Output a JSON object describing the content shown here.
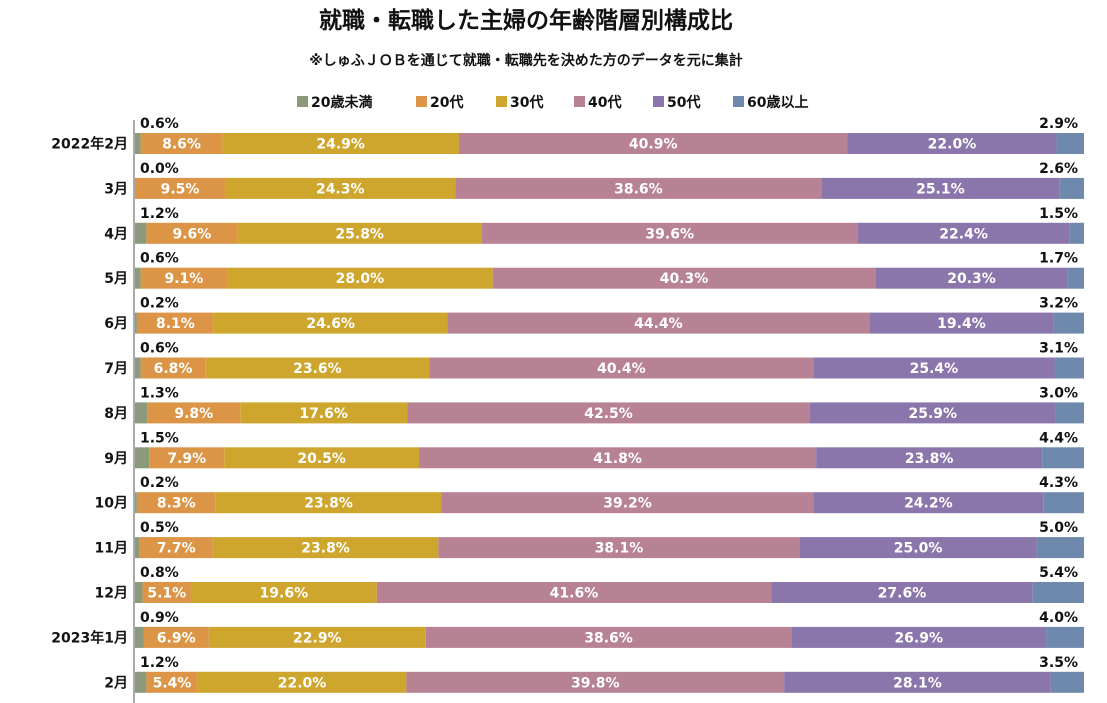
{
  "chart_data": {
    "type": "bar",
    "orientation": "horizontal",
    "stacked": "100%",
    "title": "就職・転職した主婦の年齢階層別構成比",
    "subtitle": "※しゅふＪＯＢを通じて就職・転職先を決めた方のデータを元に集計",
    "legend_position": "top",
    "grid": false,
    "xlim": [
      0,
      100
    ],
    "categories": [
      "2022年2月",
      "3月",
      "4月",
      "5月",
      "6月",
      "7月",
      "8月",
      "9月",
      "10月",
      "11月",
      "12月",
      "2023年1月",
      "2月"
    ],
    "series": [
      {
        "name": "20歳未満",
        "color": "#8a9a7b",
        "values": [
          0.6,
          0.0,
          1.2,
          0.6,
          0.2,
          0.6,
          1.3,
          1.5,
          0.2,
          0.5,
          0.8,
          0.9,
          1.2
        ],
        "labels": [
          "0.6%",
          "0.0%",
          "1.2%",
          "0.6%",
          "0.2%",
          "0.6%",
          "1.3%",
          "1.5%",
          "0.2%",
          "0.5%",
          "0.8%",
          "0.9%",
          "1.2%"
        ]
      },
      {
        "name": "20代",
        "color": "#dc9546",
        "values": [
          8.6,
          9.5,
          9.6,
          9.1,
          8.1,
          6.8,
          9.8,
          7.9,
          8.3,
          7.7,
          5.1,
          6.9,
          5.4
        ],
        "labels": [
          "8.6%",
          "9.5%",
          "9.6%",
          "9.1%",
          "8.1%",
          "6.8%",
          "9.8%",
          "7.9%",
          "8.3%",
          "7.7%",
          "5.1%",
          "6.9%",
          "5.4%"
        ]
      },
      {
        "name": "30代",
        "color": "#cfa62d",
        "values": [
          24.9,
          24.3,
          25.8,
          28.0,
          24.6,
          23.6,
          17.6,
          20.5,
          23.8,
          23.8,
          19.6,
          22.9,
          22.0
        ],
        "labels": [
          "24.9%",
          "24.3%",
          "25.8%",
          "28.0%",
          "24.6%",
          "23.6%",
          "17.6%",
          "20.5%",
          "23.8%",
          "23.8%",
          "19.6%",
          "22.9%",
          "22.0%"
        ]
      },
      {
        "name": "40代",
        "color": "#b88295",
        "values": [
          40.9,
          38.6,
          39.6,
          40.3,
          44.4,
          40.4,
          42.5,
          41.8,
          39.2,
          38.1,
          41.6,
          38.6,
          39.8
        ],
        "labels": [
          "40.9%",
          "38.6%",
          "39.6%",
          "40.3%",
          "44.4%",
          "40.4%",
          "42.5%",
          "41.8%",
          "39.2%",
          "38.1%",
          "41.6%",
          "38.6%",
          "39.8%"
        ]
      },
      {
        "name": "50代",
        "color": "#8b76ab",
        "values": [
          22.0,
          25.1,
          22.4,
          20.3,
          19.4,
          25.4,
          25.9,
          23.8,
          24.2,
          25.0,
          27.6,
          26.9,
          28.1
        ],
        "labels": [
          "22.0%",
          "25.1%",
          "22.4%",
          "20.3%",
          "19.4%",
          "25.4%",
          "25.9%",
          "23.8%",
          "24.2%",
          "25.0%",
          "27.6%",
          "26.9%",
          "28.1%"
        ]
      },
      {
        "name": "60歳以上",
        "color": "#6f89ad",
        "values": [
          2.9,
          2.6,
          1.5,
          1.7,
          3.2,
          3.1,
          3.0,
          4.4,
          4.3,
          5.0,
          5.4,
          4.0,
          3.5
        ],
        "labels": [
          "2.9%",
          "2.6%",
          "1.5%",
          "1.7%",
          "3.2%",
          "3.1%",
          "3.0%",
          "4.4%",
          "4.3%",
          "5.0%",
          "5.4%",
          "4.0%",
          "3.5%"
        ]
      }
    ]
  }
}
